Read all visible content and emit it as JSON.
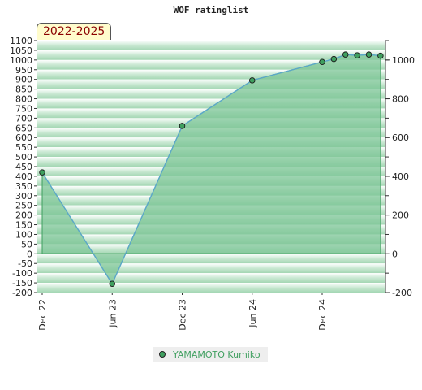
{
  "chart_data": {
    "type": "area",
    "title": "WOF ratinglist",
    "period": "2022-2025",
    "x": [
      "2022-12",
      "2023-06",
      "2023-12",
      "2024-06",
      "2024-12",
      "2025-01",
      "2025-02",
      "2025-03",
      "2025-04",
      "2025-05"
    ],
    "series": [
      {
        "name": "YAMAMOTO Kumiko",
        "values": [
          420,
          -155,
          660,
          895,
          990,
          1005,
          1028,
          1024,
          1028,
          1022
        ]
      }
    ],
    "x_ticks": [
      "Dec 22",
      "Jun 23",
      "Dec 23",
      "Jun 24",
      "Dec 24"
    ],
    "y_left_ticks": [
      1100,
      1050,
      1000,
      950,
      900,
      850,
      800,
      750,
      700,
      650,
      600,
      550,
      500,
      450,
      400,
      350,
      300,
      250,
      200,
      150,
      100,
      50,
      0,
      -50,
      -100,
      -150,
      -200
    ],
    "y_right_ticks": [
      1000,
      800,
      600,
      400,
      200,
      0,
      -200
    ],
    "ylim": [
      -200,
      1100
    ],
    "colors": {
      "line": "#5ba7c9",
      "fill": "#7dc697",
      "marker": "#3f9f5f",
      "legend_text": "#3f9f5f",
      "badge_text": "#8b0000"
    },
    "legend_position": "bottom-center",
    "grid": "alternating horizontal bands"
  }
}
